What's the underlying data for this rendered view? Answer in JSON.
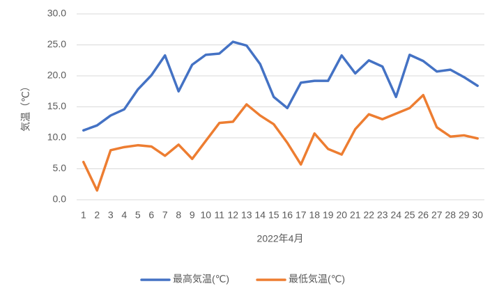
{
  "chart_data": {
    "type": "line",
    "y_label": "気温（℃）",
    "x_label": "2022年4月",
    "categories": [
      "1",
      "2",
      "3",
      "4",
      "5",
      "6",
      "7",
      "8",
      "9",
      "10",
      "11",
      "12",
      "13",
      "14",
      "15",
      "16",
      "17",
      "18",
      "19",
      "20",
      "21",
      "22",
      "23",
      "24",
      "25",
      "26",
      "27",
      "28",
      "29",
      "30"
    ],
    "series": [
      {
        "name": "最高気温(℃)",
        "color": "#4472c4",
        "values": [
          11.2,
          12.0,
          13.6,
          14.6,
          17.8,
          20.1,
          23.3,
          17.5,
          21.8,
          23.4,
          23.6,
          25.5,
          24.9,
          21.9,
          16.6,
          14.8,
          18.9,
          19.2,
          19.2,
          23.3,
          20.4,
          22.5,
          21.5,
          16.6,
          23.4,
          22.4,
          20.7,
          21.0,
          19.8,
          18.4
        ]
      },
      {
        "name": "最低気温(℃)",
        "color": "#ed7d31",
        "values": [
          6.1,
          1.5,
          8.0,
          8.5,
          8.8,
          8.6,
          7.1,
          8.9,
          6.6,
          9.5,
          12.4,
          12.6,
          15.4,
          13.6,
          12.2,
          9.2,
          5.7,
          10.7,
          8.2,
          7.3,
          11.4,
          13.8,
          13.0,
          13.9,
          14.8,
          16.9,
          11.7,
          10.2,
          10.4,
          9.9
        ]
      }
    ],
    "ylim": [
      0,
      30
    ],
    "yticks": [
      {
        "value": 0,
        "label": "0.0"
      },
      {
        "value": 5,
        "label": "5.0"
      },
      {
        "value": 10,
        "label": "10.0"
      },
      {
        "value": 15,
        "label": "15.0"
      },
      {
        "value": 20,
        "label": "20.0"
      },
      {
        "value": 25,
        "label": "25.0"
      },
      {
        "value": 30,
        "label": "30.0"
      }
    ],
    "grid": true,
    "legend": "bottom"
  }
}
